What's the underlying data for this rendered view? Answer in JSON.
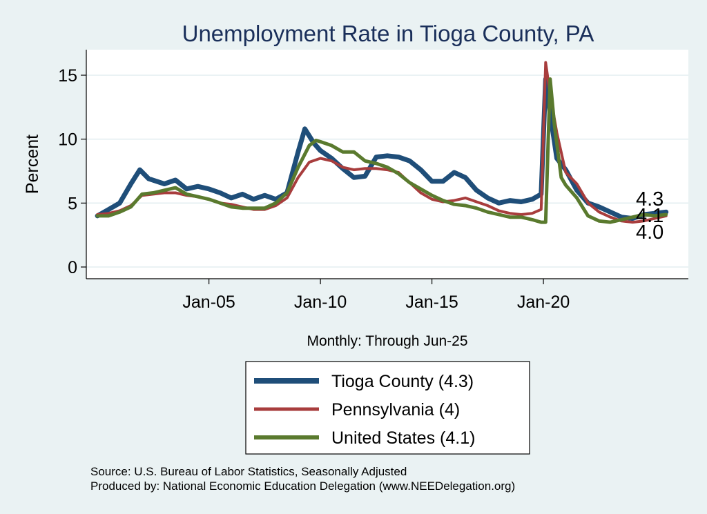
{
  "chart_data": {
    "type": "line",
    "title": "Unemployment Rate in Tioga  County, PA",
    "ylabel": "Percent",
    "xlabel": "Monthly: Through Jun-25",
    "ylim": [
      0,
      17
    ],
    "xlim": [
      1999.5,
      2026.5
    ],
    "y_ticks": [
      0,
      5,
      10,
      15
    ],
    "x_ticks": [
      {
        "value": 2005,
        "label": "Jan-05"
      },
      {
        "value": 2010,
        "label": "Jan-10"
      },
      {
        "value": 2015,
        "label": "Jan-15"
      },
      {
        "value": 2020,
        "label": "Jan-20"
      }
    ],
    "grid": true,
    "legend_placement": "bottom",
    "series": [
      {
        "name": "Tioga  County (4.3)",
        "color": "#1f4e79",
        "end_label": "4.3",
        "points": [
          [
            2000.0,
            4.0
          ],
          [
            2000.5,
            4.5
          ],
          [
            2001.0,
            5.0
          ],
          [
            2001.5,
            6.5
          ],
          [
            2001.9,
            7.6
          ],
          [
            2002.3,
            6.9
          ],
          [
            2003.0,
            6.5
          ],
          [
            2003.5,
            6.8
          ],
          [
            2004.0,
            6.1
          ],
          [
            2004.5,
            6.3
          ],
          [
            2005.0,
            6.1
          ],
          [
            2005.5,
            5.8
          ],
          [
            2006.0,
            5.4
          ],
          [
            2006.5,
            5.7
          ],
          [
            2007.0,
            5.3
          ],
          [
            2007.5,
            5.6
          ],
          [
            2008.0,
            5.3
          ],
          [
            2008.5,
            5.8
          ],
          [
            2009.0,
            9.0
          ],
          [
            2009.3,
            10.8
          ],
          [
            2009.7,
            9.7
          ],
          [
            2010.0,
            9.1
          ],
          [
            2010.5,
            8.5
          ],
          [
            2011.0,
            7.7
          ],
          [
            2011.5,
            7.0
          ],
          [
            2012.0,
            7.1
          ],
          [
            2012.5,
            8.6
          ],
          [
            2013.0,
            8.7
          ],
          [
            2013.5,
            8.6
          ],
          [
            2014.0,
            8.3
          ],
          [
            2014.5,
            7.6
          ],
          [
            2015.0,
            6.7
          ],
          [
            2015.5,
            6.7
          ],
          [
            2016.0,
            7.4
          ],
          [
            2016.5,
            7.0
          ],
          [
            2017.0,
            6.0
          ],
          [
            2017.5,
            5.4
          ],
          [
            2018.0,
            5.0
          ],
          [
            2018.5,
            5.2
          ],
          [
            2019.0,
            5.1
          ],
          [
            2019.5,
            5.3
          ],
          [
            2019.9,
            5.7
          ],
          [
            2020.1,
            14.7
          ],
          [
            2020.3,
            12.0
          ],
          [
            2020.6,
            8.5
          ],
          [
            2021.0,
            7.6
          ],
          [
            2021.5,
            6.0
          ],
          [
            2022.0,
            5.0
          ],
          [
            2022.5,
            4.7
          ],
          [
            2023.0,
            4.3
          ],
          [
            2023.5,
            3.9
          ],
          [
            2024.0,
            3.8
          ],
          [
            2024.5,
            4.1
          ],
          [
            2025.0,
            4.2
          ],
          [
            2025.5,
            4.3
          ]
        ]
      },
      {
        "name": "Pennsylvania (4)",
        "color": "#a83d3d",
        "end_label": "4.0",
        "points": [
          [
            2000.0,
            4.1
          ],
          [
            2000.5,
            4.2
          ],
          [
            2001.0,
            4.4
          ],
          [
            2001.5,
            4.8
          ],
          [
            2002.0,
            5.6
          ],
          [
            2002.5,
            5.7
          ],
          [
            2003.0,
            5.8
          ],
          [
            2003.5,
            5.8
          ],
          [
            2004.0,
            5.6
          ],
          [
            2004.5,
            5.5
          ],
          [
            2005.0,
            5.3
          ],
          [
            2005.5,
            5.0
          ],
          [
            2006.0,
            4.9
          ],
          [
            2006.5,
            4.7
          ],
          [
            2007.0,
            4.5
          ],
          [
            2007.5,
            4.5
          ],
          [
            2008.0,
            4.8
          ],
          [
            2008.5,
            5.4
          ],
          [
            2009.0,
            7.0
          ],
          [
            2009.5,
            8.2
          ],
          [
            2010.0,
            8.5
          ],
          [
            2010.5,
            8.3
          ],
          [
            2011.0,
            7.8
          ],
          [
            2011.5,
            7.6
          ],
          [
            2012.0,
            7.7
          ],
          [
            2012.5,
            7.7
          ],
          [
            2013.0,
            7.6
          ],
          [
            2013.5,
            7.4
          ],
          [
            2014.0,
            6.6
          ],
          [
            2014.5,
            5.8
          ],
          [
            2015.0,
            5.3
          ],
          [
            2015.5,
            5.1
          ],
          [
            2016.0,
            5.2
          ],
          [
            2016.5,
            5.4
          ],
          [
            2017.0,
            5.1
          ],
          [
            2017.5,
            4.8
          ],
          [
            2018.0,
            4.4
          ],
          [
            2018.5,
            4.2
          ],
          [
            2019.0,
            4.1
          ],
          [
            2019.5,
            4.2
          ],
          [
            2019.9,
            4.5
          ],
          [
            2020.1,
            16.0
          ],
          [
            2020.3,
            13.5
          ],
          [
            2020.6,
            10.5
          ],
          [
            2021.0,
            7.4
          ],
          [
            2021.5,
            6.5
          ],
          [
            2022.0,
            5.0
          ],
          [
            2022.5,
            4.3
          ],
          [
            2023.0,
            3.9
          ],
          [
            2023.5,
            3.6
          ],
          [
            2024.0,
            3.5
          ],
          [
            2024.5,
            3.6
          ],
          [
            2025.0,
            3.8
          ],
          [
            2025.5,
            4.0
          ]
        ]
      },
      {
        "name": "United States (4.1)",
        "color": "#5a7a2e",
        "end_label": "4.1",
        "points": [
          [
            2000.0,
            4.0
          ],
          [
            2000.5,
            4.0
          ],
          [
            2001.0,
            4.3
          ],
          [
            2001.5,
            4.7
          ],
          [
            2002.0,
            5.7
          ],
          [
            2002.5,
            5.8
          ],
          [
            2003.0,
            6.0
          ],
          [
            2003.5,
            6.2
          ],
          [
            2004.0,
            5.7
          ],
          [
            2004.5,
            5.5
          ],
          [
            2005.0,
            5.3
          ],
          [
            2005.5,
            5.0
          ],
          [
            2006.0,
            4.7
          ],
          [
            2006.5,
            4.6
          ],
          [
            2007.0,
            4.6
          ],
          [
            2007.5,
            4.6
          ],
          [
            2008.0,
            5.0
          ],
          [
            2008.5,
            5.8
          ],
          [
            2009.0,
            7.8
          ],
          [
            2009.5,
            9.5
          ],
          [
            2009.8,
            9.9
          ],
          [
            2010.0,
            9.8
          ],
          [
            2010.5,
            9.5
          ],
          [
            2011.0,
            9.0
          ],
          [
            2011.5,
            9.0
          ],
          [
            2012.0,
            8.3
          ],
          [
            2012.5,
            8.1
          ],
          [
            2013.0,
            7.8
          ],
          [
            2013.5,
            7.3
          ],
          [
            2014.0,
            6.6
          ],
          [
            2014.5,
            6.1
          ],
          [
            2015.0,
            5.6
          ],
          [
            2015.5,
            5.2
          ],
          [
            2016.0,
            4.9
          ],
          [
            2016.5,
            4.8
          ],
          [
            2017.0,
            4.6
          ],
          [
            2017.5,
            4.3
          ],
          [
            2018.0,
            4.1
          ],
          [
            2018.5,
            3.9
          ],
          [
            2019.0,
            3.9
          ],
          [
            2019.5,
            3.7
          ],
          [
            2019.9,
            3.5
          ],
          [
            2020.1,
            3.5
          ],
          [
            2020.3,
            14.7
          ],
          [
            2020.5,
            11.0
          ],
          [
            2020.8,
            7.0
          ],
          [
            2021.0,
            6.4
          ],
          [
            2021.5,
            5.4
          ],
          [
            2022.0,
            4.0
          ],
          [
            2022.5,
            3.6
          ],
          [
            2023.0,
            3.5
          ],
          [
            2023.5,
            3.7
          ],
          [
            2024.0,
            3.9
          ],
          [
            2024.5,
            4.1
          ],
          [
            2025.0,
            4.0
          ],
          [
            2025.5,
            4.1
          ]
        ]
      }
    ]
  },
  "source_lines": [
    "Source: U.S. Bureau of Labor Statistics, Seasonally Adjusted",
    "Produced by: National Economic Education Delegation (www.NEEDelegation.org)"
  ]
}
